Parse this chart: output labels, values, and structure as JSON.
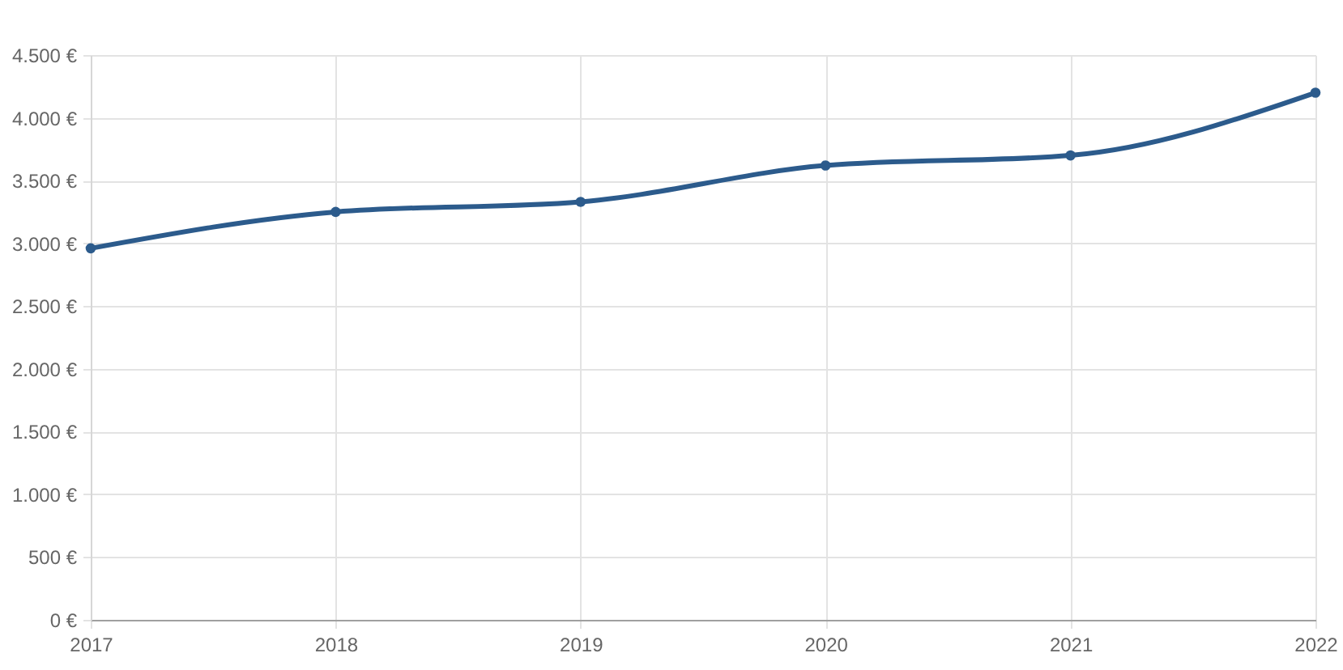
{
  "chart_data": {
    "type": "line",
    "categories": [
      "2017",
      "2018",
      "2019",
      "2020",
      "2021",
      "2022"
    ],
    "series": [
      {
        "color": "#2c5b8c",
        "values": [
          2960,
          3250,
          3330,
          3620,
          3700,
          4200
        ]
      }
    ],
    "ylim": [
      0,
      4500
    ],
    "yticks": [
      {
        "value": 0,
        "label": "0 €"
      },
      {
        "value": 500,
        "label": "500 €"
      },
      {
        "value": 1000,
        "label": "1.000 €"
      },
      {
        "value": 1500,
        "label": "1.500 €"
      },
      {
        "value": 2000,
        "label": "2.000 €"
      },
      {
        "value": 2500,
        "label": "2.500 €"
      },
      {
        "value": 3000,
        "label": "3.000 €"
      },
      {
        "value": 3500,
        "label": "3.500 €"
      },
      {
        "value": 4000,
        "label": "4.000 €"
      },
      {
        "value": 4500,
        "label": "4.500 €"
      }
    ],
    "grid": true,
    "marker": "circle",
    "line_style": "solid"
  }
}
